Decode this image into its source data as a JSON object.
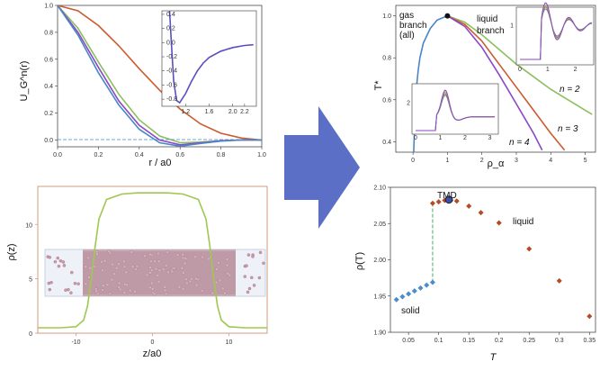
{
  "colors": {
    "blue": "#4a86c5",
    "green": "#8cbf5e",
    "red": "#cc5a2e",
    "purple": "#8a47c7",
    "arrow": "#5b6fc6",
    "tan": "#cf9c7c",
    "olive": "#9fc850",
    "solid_pts": "#4a8ccc",
    "liquid_pts": "#b54a24"
  },
  "chart_data": [
    {
      "id": "potential",
      "type": "line",
      "ylabel": "U_G^n(r)",
      "xlabel": "r / a0",
      "xlim": [
        0,
        1.0
      ],
      "ylim": [
        -0.05,
        1.0
      ],
      "xticks": [
        "0.0",
        "0.2",
        "0.4",
        "0.6",
        "0.8",
        "1.0"
      ],
      "yticks": [
        "0.0",
        "0.2",
        "0.4",
        "0.6",
        "0.8",
        "1.0"
      ],
      "series": [
        {
          "color": "#cc5a2e",
          "x": [
            0,
            0.1,
            0.2,
            0.3,
            0.4,
            0.5,
            0.6,
            0.7,
            0.8,
            0.9,
            1.0
          ],
          "y": [
            1.0,
            0.96,
            0.85,
            0.7,
            0.53,
            0.37,
            0.23,
            0.12,
            0.05,
            0.015,
            0.0
          ]
        },
        {
          "color": "#8cbf5e",
          "x": [
            0,
            0.1,
            0.2,
            0.3,
            0.4,
            0.5,
            0.6,
            0.7,
            0.8,
            0.9,
            1.0
          ],
          "y": [
            1.0,
            0.83,
            0.58,
            0.34,
            0.15,
            0.03,
            -0.02,
            -0.015,
            -0.005,
            0,
            0
          ]
        },
        {
          "color": "#8a47c7",
          "x": [
            0,
            0.1,
            0.2,
            0.3,
            0.4,
            0.5,
            0.6,
            0.7,
            0.8,
            0.9,
            1.0
          ],
          "y": [
            1.0,
            0.8,
            0.54,
            0.29,
            0.11,
            0.0,
            -0.035,
            -0.02,
            -0.005,
            0,
            0
          ]
        },
        {
          "color": "#4a86c5",
          "x": [
            0,
            0.1,
            0.2,
            0.3,
            0.4,
            0.5,
            0.6,
            0.7,
            0.8,
            0.9,
            1.0
          ],
          "y": [
            1.0,
            0.78,
            0.5,
            0.26,
            0.08,
            -0.02,
            -0.045,
            -0.025,
            -0.008,
            0,
            0
          ]
        }
      ],
      "inset": {
        "xlim": [
          0.8,
          2.4
        ],
        "ylim": [
          -0.9,
          0.45
        ],
        "xticks": [
          "1.2",
          "1.6",
          "2.0",
          "2.2"
        ],
        "yticks": [
          "0.4",
          "0.2",
          "0.0",
          "-0.2",
          "-0.4",
          "-0.6",
          "-0.8"
        ],
        "x": [
          0.93,
          0.96,
          1.0,
          1.05,
          1.1,
          1.2,
          1.3,
          1.4,
          1.5,
          1.6,
          1.8,
          2.0,
          2.2,
          2.35
        ],
        "y": [
          0.45,
          0.0,
          -0.55,
          -0.82,
          -0.85,
          -0.72,
          -0.55,
          -0.4,
          -0.29,
          -0.21,
          -0.12,
          -0.07,
          -0.04,
          -0.03
        ]
      }
    },
    {
      "id": "phase_diagram",
      "type": "line",
      "ylabel": "T*",
      "xlabel": "ρ_α",
      "xlim": [
        -0.5,
        5.3
      ],
      "ylim": [
        0.35,
        1.05
      ],
      "xticks": [
        "0",
        "1",
        "2",
        "3",
        "4",
        "5"
      ],
      "yticks": [
        "0.4",
        "0.6",
        "0.8",
        "1.0"
      ],
      "annotations": [
        "gas",
        "branch",
        "(all)",
        "liquid",
        "branch",
        "n = 2",
        "n = 3",
        "n = 4"
      ],
      "series": [
        {
          "name": "n = 2",
          "color": "#8cbf5e",
          "x": [
            1.0,
            1.5,
            2.0,
            2.5,
            3.0,
            3.5,
            4.0,
            4.5,
            5.0,
            5.2
          ],
          "y": [
            1.0,
            0.97,
            0.91,
            0.84,
            0.77,
            0.71,
            0.65,
            0.6,
            0.55,
            0.53
          ]
        },
        {
          "name": "n = 3",
          "color": "#cc5a2e",
          "x": [
            1.0,
            1.5,
            2.0,
            2.5,
            3.0,
            3.5,
            4.0,
            4.4
          ],
          "y": [
            1.0,
            0.96,
            0.88,
            0.77,
            0.66,
            0.55,
            0.44,
            0.36
          ]
        },
        {
          "name": "n = 4",
          "color": "#8a47c7",
          "x": [
            1.0,
            1.5,
            2.0,
            2.5,
            3.0,
            3.5,
            3.75
          ],
          "y": [
            1.0,
            0.95,
            0.85,
            0.72,
            0.58,
            0.44,
            0.36
          ]
        },
        {
          "name": "gas",
          "color": "#4a86c5",
          "x": [
            0.02,
            0.04,
            0.07,
            0.1,
            0.15,
            0.2,
            0.3,
            0.5,
            0.7,
            1.0
          ],
          "y": [
            0.35,
            0.45,
            0.58,
            0.66,
            0.74,
            0.8,
            0.87,
            0.94,
            0.98,
            1.0
          ]
        }
      ],
      "critical_point": {
        "x": 1.0,
        "y": 1.0
      },
      "inset_right": {
        "xticks": [
          "0",
          "1",
          "2"
        ],
        "yticks": [
          "1"
        ]
      },
      "inset_left": {
        "xticks": [
          "0",
          "1",
          "2",
          "3"
        ],
        "yticks": [
          "2"
        ]
      }
    },
    {
      "id": "density_profile",
      "type": "line",
      "ylabel": "ρ(z)",
      "xlabel": "z/a0",
      "xlim": [
        -15,
        15
      ],
      "ylim": [
        0,
        13.5
      ],
      "xticks": [
        "-10",
        "0",
        "10"
      ],
      "yticks": [
        "0",
        "5",
        "10"
      ],
      "x": [
        -15,
        -12,
        -10,
        -9,
        -8.5,
        -8,
        -7.5,
        -7,
        -6,
        -4,
        -2,
        0,
        2,
        4,
        6,
        7,
        7.5,
        8,
        8.5,
        9,
        10,
        12,
        15
      ],
      "y": [
        0.5,
        0.5,
        0.6,
        1.2,
        2.5,
        5,
        8,
        10.5,
        12.3,
        12.8,
        12.9,
        12.9,
        12.9,
        12.8,
        12.3,
        10.5,
        8,
        5,
        2.5,
        1.2,
        0.6,
        0.5,
        0.5
      ]
    },
    {
      "id": "tmd",
      "type": "scatter",
      "ylabel": "ρ(T)",
      "xlabel": "T",
      "xlim": [
        0.02,
        0.36
      ],
      "ylim": [
        1.9,
        2.1
      ],
      "xticks": [
        "0.05",
        "0.1",
        "0.15",
        "0.2",
        "0.25",
        "0.3",
        "0.35"
      ],
      "yticks": [
        "1.90",
        "1.95",
        "2.00",
        "2.05",
        "2.10"
      ],
      "annotations": [
        "TMD",
        "liquid",
        "solid"
      ],
      "solid": {
        "x": [
          0.03,
          0.04,
          0.05,
          0.06,
          0.07,
          0.08,
          0.09
        ],
        "y": [
          1.945,
          1.949,
          1.953,
          1.957,
          1.961,
          1.965,
          1.969
        ]
      },
      "liquid": {
        "x": [
          0.09,
          0.1,
          0.11,
          0.12,
          0.13,
          0.15,
          0.17,
          0.2,
          0.25,
          0.3,
          0.35
        ],
        "y": [
          2.078,
          2.08,
          2.082,
          2.082,
          2.081,
          2.074,
          2.065,
          2.051,
          2.015,
          1.971,
          1.922
        ]
      },
      "tmd_point": {
        "x": 0.117,
        "y": 2.083
      }
    }
  ]
}
